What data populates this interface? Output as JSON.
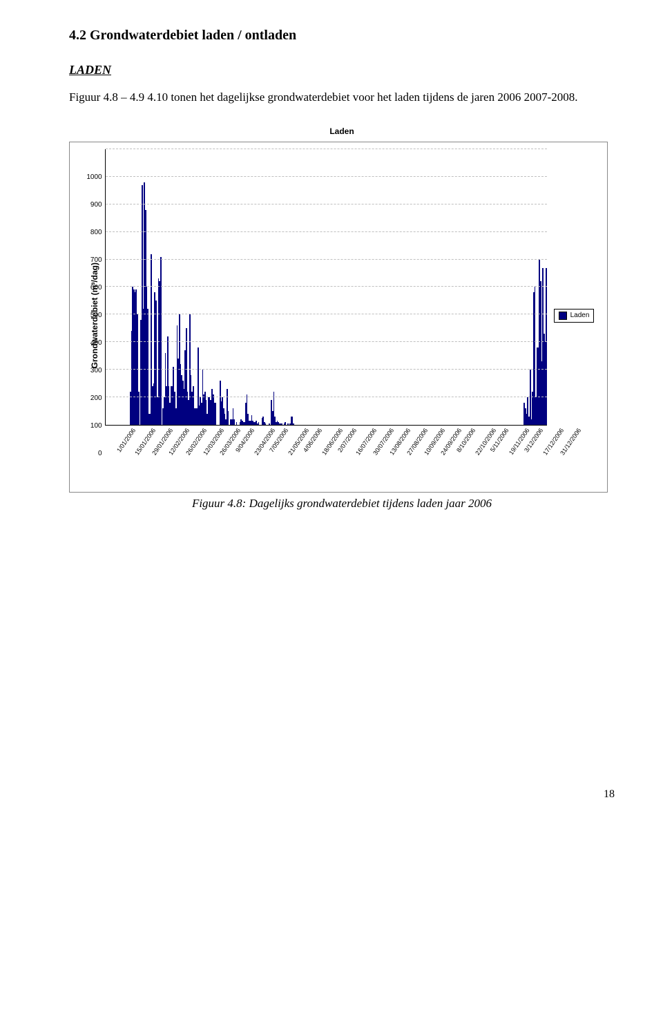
{
  "section_title": "4.2   Grondwaterdebiet laden / ontladen",
  "subheading": "LADEN",
  "body_text": "Figuur 4.8 – 4.9 4.10 tonen het dagelijkse grondwaterdebiet voor het laden tijdens de jaren 2006 2007-2008.",
  "caption": "Figuur 4.8: Dagelijks grondwaterdebiet tijdens laden jaar 2006",
  "page_number": "18",
  "chart": {
    "type": "bar",
    "title": "Laden",
    "y_axis_label": "Grondwaterdebiet (m³/dag)",
    "ylim": [
      0,
      1000
    ],
    "ytick_step": 100,
    "yticks": [
      "1000",
      "900",
      "800",
      "700",
      "600",
      "500",
      "400",
      "300",
      "200",
      "100",
      "0"
    ],
    "background_color": "#ffffff",
    "grid_color": "#bfbfbf",
    "bar_color": "#000080",
    "outer_border_color": "#888888",
    "legend_label": "Laden",
    "legend_font_size": 10,
    "title_font_size": 12,
    "axis_label_font_size": 12,
    "tick_font_size": 10,
    "x_tick_labels": [
      "1/01/2006",
      "15/01/2006",
      "29/01/2006",
      "12/02/2006",
      "26/02/2006",
      "12/03/2006",
      "26/03/2006",
      "9/04/2006",
      "23/04/2006",
      "7/05/2006",
      "21/05/2006",
      "4/06/2006",
      "18/06/2006",
      "2/07/2006",
      "16/07/2006",
      "30/07/2006",
      "13/08/2006",
      "27/08/2006",
      "10/09/2006",
      "24/09/2006",
      "8/10/2006",
      "22/10/2006",
      "5/11/2006",
      "19/11/2006",
      "3/12/2006",
      "17/12/2006",
      "31/12/2006"
    ],
    "values": [
      0,
      0,
      0,
      0,
      0,
      0,
      0,
      0,
      0,
      0,
      0,
      0,
      0,
      0,
      0,
      0,
      0,
      0,
      0,
      0,
      0,
      120,
      340,
      500,
      490,
      480,
      490,
      400,
      120,
      0,
      380,
      870,
      420,
      880,
      780,
      500,
      420,
      40,
      40,
      620,
      140,
      150,
      480,
      450,
      100,
      530,
      520,
      610,
      0,
      60,
      100,
      260,
      140,
      320,
      140,
      80,
      140,
      140,
      210,
      120,
      60,
      360,
      240,
      400,
      220,
      180,
      160,
      130,
      270,
      350,
      120,
      90,
      400,
      180,
      120,
      140,
      60,
      60,
      60,
      280,
      70,
      100,
      80,
      200,
      110,
      120,
      90,
      40,
      100,
      100,
      90,
      130,
      110,
      80,
      80,
      0,
      0,
      0,
      160,
      85,
      100,
      60,
      40,
      20,
      130,
      50,
      0,
      20,
      20,
      60,
      20,
      0,
      10,
      0,
      0,
      10,
      20,
      15,
      10,
      10,
      80,
      110,
      40,
      15,
      15,
      35,
      15,
      10,
      10,
      15,
      5,
      10,
      0,
      0,
      25,
      30,
      10,
      5,
      0,
      0,
      5,
      0,
      90,
      50,
      120,
      30,
      10,
      15,
      10,
      5,
      5,
      5,
      0,
      5,
      10,
      0,
      5,
      0,
      5,
      30,
      30,
      5,
      0,
      0,
      0,
      0,
      0,
      0,
      0,
      0,
      0,
      0,
      0,
      0,
      0,
      0,
      0,
      0,
      0,
      0,
      0,
      0,
      0,
      0,
      0,
      0,
      0,
      0,
      0,
      0,
      0,
      0,
      0,
      0,
      0,
      0,
      0,
      0,
      0,
      0,
      0,
      0,
      0,
      0,
      0,
      0,
      0,
      0,
      0,
      0,
      0,
      0,
      0,
      0,
      0,
      0,
      0,
      0,
      0,
      0,
      0,
      0,
      0,
      0,
      0,
      0,
      0,
      0,
      0,
      0,
      0,
      0,
      0,
      0,
      0,
      0,
      0,
      0,
      0,
      0,
      0,
      0,
      0,
      0,
      0,
      0,
      0,
      0,
      0,
      0,
      0,
      0,
      0,
      0,
      0,
      0,
      0,
      0,
      0,
      0,
      0,
      0,
      0,
      0,
      0,
      0,
      0,
      0,
      0,
      0,
      0,
      0,
      0,
      0,
      0,
      0,
      0,
      0,
      0,
      0,
      0,
      0,
      0,
      0,
      0,
      0,
      0,
      0,
      0,
      0,
      0,
      0,
      0,
      0,
      0,
      0,
      0,
      0,
      0,
      0,
      0,
      0,
      0,
      0,
      0,
      0,
      0,
      0,
      0,
      0,
      0,
      0,
      0,
      0,
      0,
      0,
      0,
      0,
      0,
      0,
      0,
      0,
      0,
      0,
      0,
      0,
      0,
      0,
      0,
      0,
      0,
      0,
      0,
      0,
      0,
      0,
      0,
      0,
      0,
      0,
      0,
      0,
      0,
      0,
      0,
      0,
      0,
      0,
      0,
      0,
      0,
      0,
      0,
      0,
      0,
      0,
      0,
      0,
      0,
      80,
      60,
      40,
      100,
      30,
      200,
      20,
      120,
      480,
      500,
      100,
      280,
      280,
      600,
      520,
      230,
      570,
      330,
      300,
      570
    ]
  }
}
